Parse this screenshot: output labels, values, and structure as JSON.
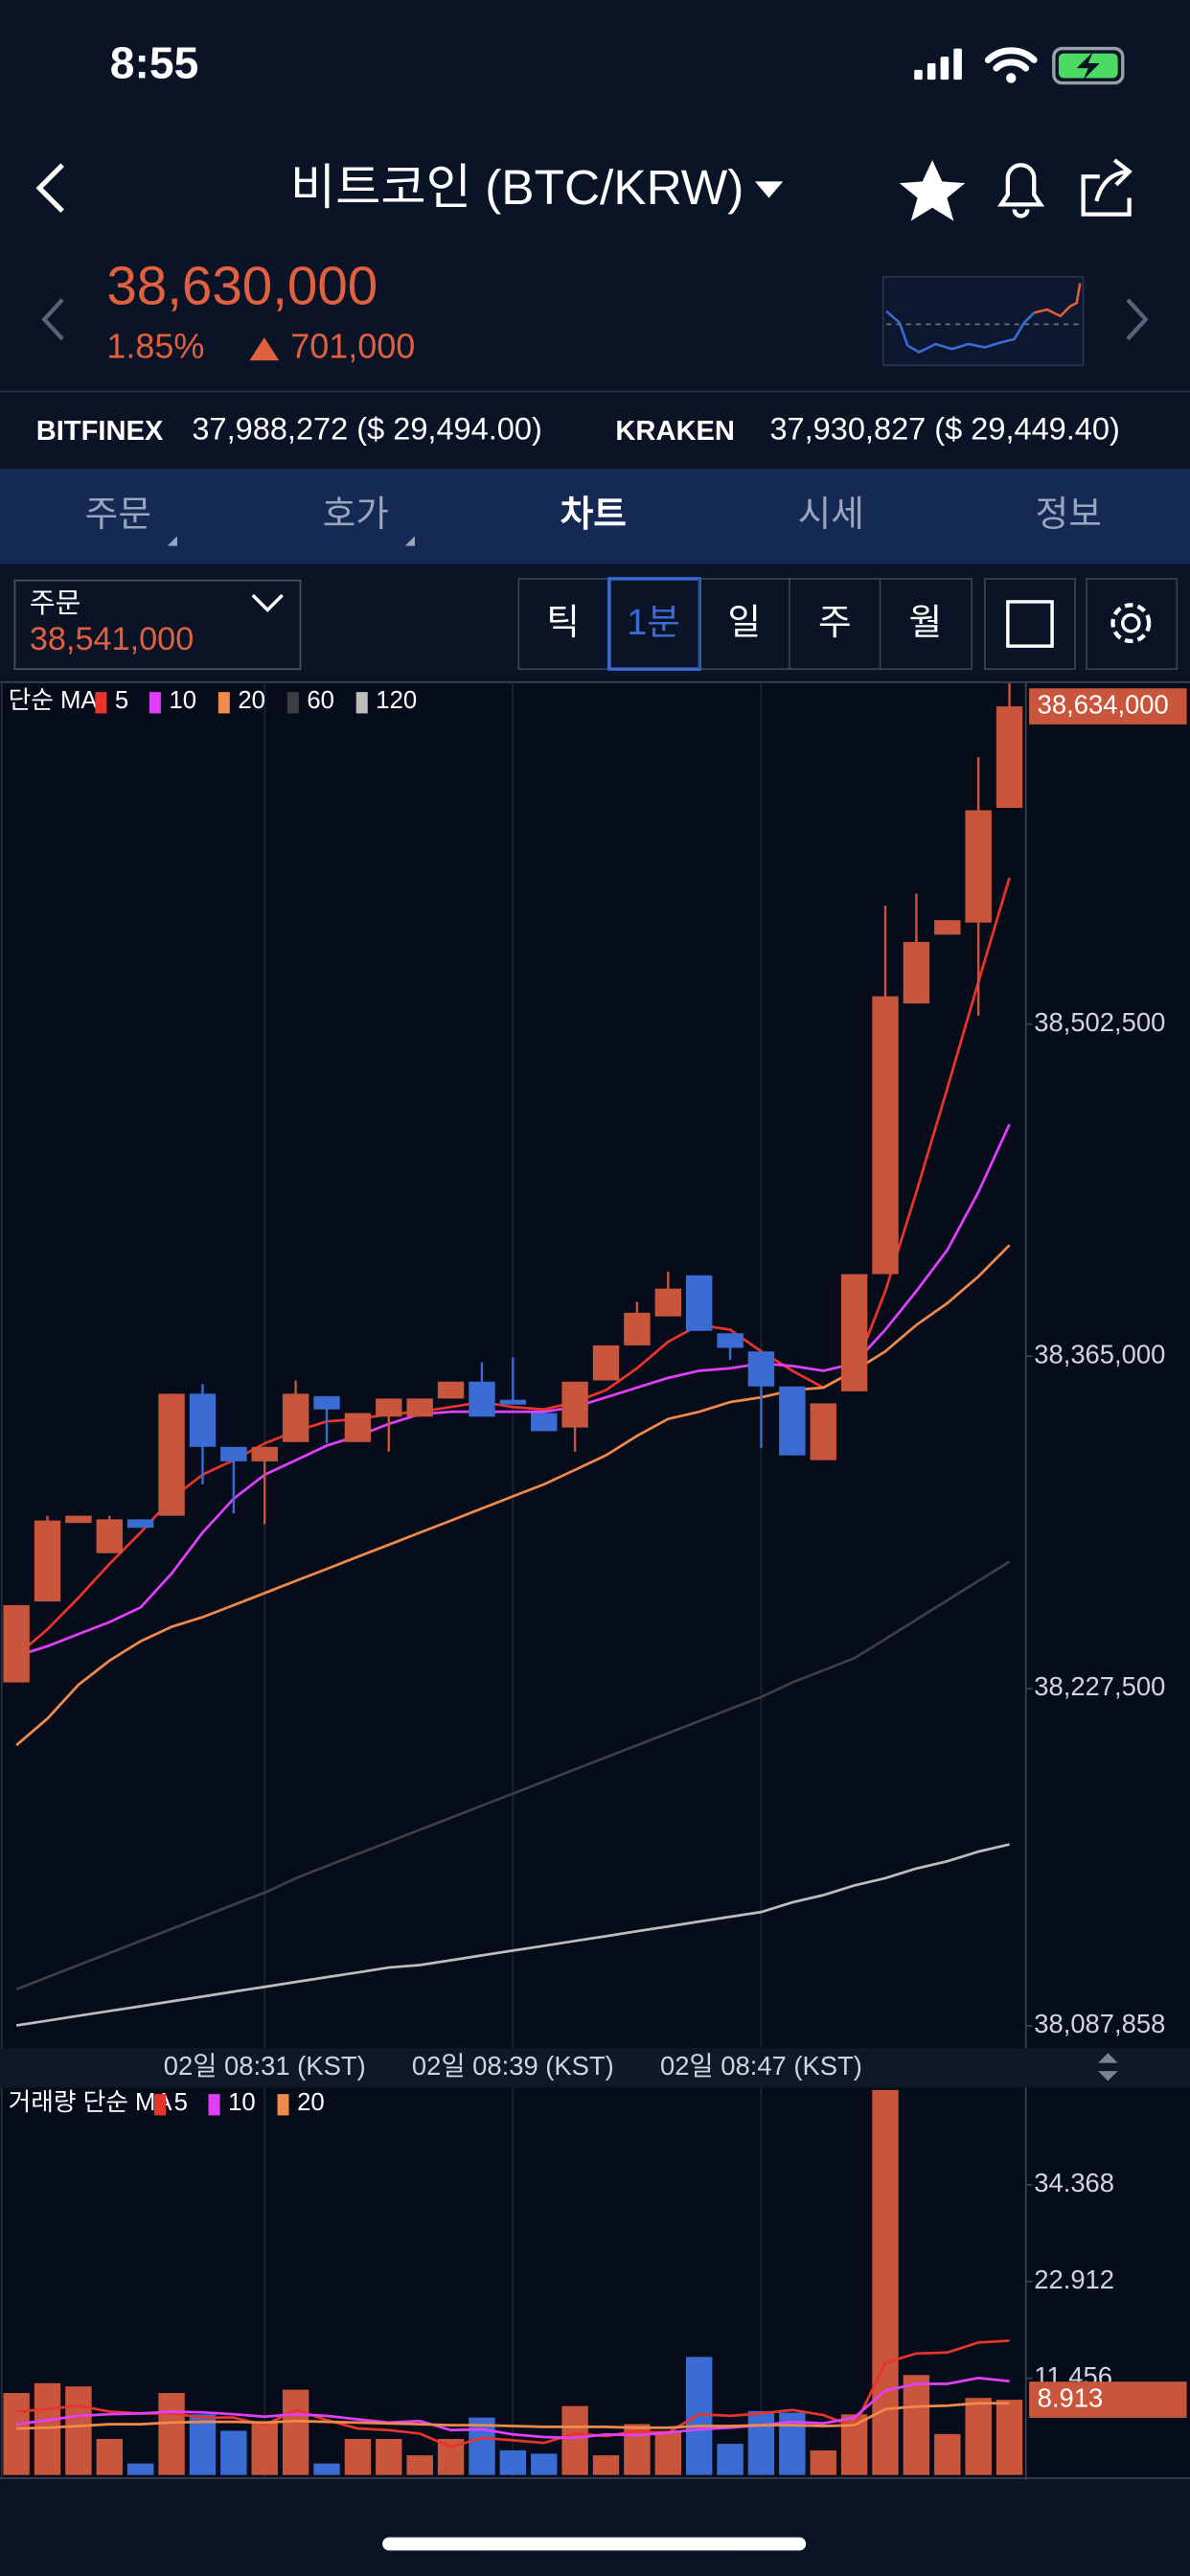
{
  "status_bar": {
    "time": "8:55"
  },
  "header": {
    "title": "비트코인 (BTC/KRW)"
  },
  "ticker": {
    "price": "38,630,000",
    "change_pct": "1.85%",
    "change": "701,000"
  },
  "exchanges": [
    {
      "name": "BITFINEX",
      "quote": "37,988,272 ($ 29,494.00)"
    },
    {
      "name": "KRAKEN",
      "quote": "37,930,827 ($ 29,449.40)"
    }
  ],
  "tabs": [
    "주문",
    "호가",
    "차트",
    "시세",
    "정보"
  ],
  "active_tab": 2,
  "order_box": {
    "label": "주문",
    "price": "38,541,000"
  },
  "periods": [
    "틱",
    "1분",
    "일",
    "주",
    "월"
  ],
  "active_period": 1,
  "chart_data": [
    {
      "type": "candlestick",
      "legend_title": "단순 MA",
      "categories": [
        null,
        null,
        null,
        null,
        null,
        null,
        null,
        null,
        "02일 08:31 (KST)",
        null,
        null,
        null,
        null,
        null,
        null,
        null,
        "02일 08:39 (KST)",
        null,
        null,
        null,
        null,
        null,
        null,
        null,
        "02일 08:47 (KST)",
        null,
        null,
        null,
        null,
        null,
        null,
        null,
        null
      ],
      "open": [
        38230000,
        38263500,
        38296000,
        38283500,
        38297500,
        38299000,
        38349500,
        38327500,
        38321500,
        38329500,
        38348500,
        38329500,
        38340000,
        38340000,
        38347500,
        38354500,
        38347000,
        38341500,
        38335500,
        38355000,
        38369500,
        38381500,
        38398500,
        38374500,
        38367000,
        38352500,
        38322000,
        38350500,
        38399000,
        38511000,
        38539500,
        38544500,
        38592000
      ],
      "high": [
        38262000,
        38299000,
        38299000,
        38299000,
        38297500,
        38349500,
        38353500,
        38327500,
        38327500,
        38355000,
        38348500,
        38341500,
        38347500,
        38347500,
        38354500,
        38362500,
        38364500,
        38341500,
        38354500,
        38369500,
        38387500,
        38400000,
        38398500,
        38374500,
        38367000,
        38352500,
        38345500,
        38399000,
        38551500,
        38556500,
        38545500,
        38613000,
        38643500
      ],
      "low": [
        38230000,
        38263500,
        38296000,
        38283500,
        38294000,
        38299000,
        38312000,
        38300000,
        38295500,
        38329500,
        38329000,
        38329500,
        38325500,
        38340000,
        38347500,
        38340000,
        38345000,
        38334000,
        38325500,
        38355000,
        38369500,
        38381500,
        38375500,
        38363500,
        38327000,
        38324000,
        38322000,
        38350500,
        38399000,
        38511000,
        38539500,
        38506000,
        38592000
      ],
      "close": [
        38262000,
        38297000,
        38299000,
        38297500,
        38294000,
        38349500,
        38327500,
        38321500,
        38327500,
        38349500,
        38343000,
        38341500,
        38347500,
        38347500,
        38354500,
        38340000,
        38345000,
        38334000,
        38354500,
        38369500,
        38383000,
        38393000,
        38375500,
        38368500,
        38352500,
        38324000,
        38345500,
        38399000,
        38514000,
        38536500,
        38545500,
        38591000,
        38634000
      ],
      "up_color": "#c9553d",
      "down_color": "#3a6cd4",
      "ylim": [
        38080000,
        38644000
      ],
      "yticks": [
        {
          "value": 38502500,
          "label": "38,502,500"
        },
        {
          "value": 38365000,
          "label": "38,365,000"
        },
        {
          "value": 38227500,
          "label": "38,227,500"
        },
        {
          "value": 38087858,
          "label": "38,087,858"
        }
      ],
      "last_price": {
        "value": 38634000,
        "label": "38,634,000"
      },
      "series": [
        {
          "name": "5",
          "color": "#e8352c",
          "values": [
            38241000,
            38252000,
            38265000,
            38279000,
            38292000,
            38306000,
            38316000,
            38322000,
            38329000,
            38334000,
            38338000,
            38339000,
            38341000,
            38342000,
            38344000,
            38346000,
            38344000,
            38343000,
            38346000,
            38351000,
            38360000,
            38371000,
            38378000,
            38376000,
            38367000,
            38359000,
            38352000,
            38359000,
            38392000,
            38433000,
            38476000,
            38520000,
            38563000
          ]
        },
        {
          "name": "10",
          "color": "#e040fb",
          "values": [
            38241000,
            38245000,
            38250000,
            38255000,
            38261000,
            38275000,
            38292000,
            38306000,
            38316000,
            38322000,
            38328000,
            38332000,
            38337000,
            38341000,
            38342000,
            38342000,
            38342000,
            38342000,
            38344000,
            38348000,
            38352000,
            38356000,
            38359000,
            38360000,
            38362000,
            38361000,
            38359000,
            38362000,
            38376000,
            38392000,
            38409000,
            38433000,
            38461000
          ]
        },
        {
          "name": "20",
          "color": "#f08a4b",
          "values": [
            38204000,
            38215000,
            38229000,
            38239000,
            38247000,
            38253000,
            38257000,
            38262000,
            38267000,
            38272000,
            38277000,
            38282000,
            38287000,
            38292000,
            38297000,
            38302000,
            38307000,
            38312000,
            38318000,
            38324000,
            38332000,
            38339000,
            38342000,
            38346000,
            38348000,
            38351000,
            38352000,
            38359000,
            38367000,
            38378000,
            38387000,
            38398000,
            38411000
          ]
        },
        {
          "name": "60",
          "color": "#3c4043",
          "values": [
            38103000,
            38108000,
            38113000,
            38118000,
            38123000,
            38128000,
            38133000,
            38138000,
            38143000,
            38149000,
            38154000,
            38159000,
            38164000,
            38169000,
            38174000,
            38179000,
            38184000,
            38189000,
            38194000,
            38199000,
            38204000,
            38209000,
            38214000,
            38219000,
            38224000,
            38230000,
            38235000,
            38240000,
            38248000,
            38256000,
            38264000,
            38272000,
            38280000
          ]
        },
        {
          "name": "120",
          "color": "#bdbdbd",
          "values": [
            38088000,
            38090000,
            38092000,
            38094000,
            38096000,
            38098000,
            38100000,
            38102000,
            38104000,
            38106000,
            38108000,
            38110000,
            38112000,
            38113000,
            38115000,
            38117000,
            38119000,
            38121000,
            38123000,
            38125000,
            38127000,
            38129000,
            38131000,
            38133000,
            38135000,
            38139000,
            38142000,
            38146000,
            38149000,
            38153000,
            38156000,
            38160000,
            38163000
          ]
        }
      ]
    },
    {
      "type": "bar",
      "legend_title": "거래량 단순 MA",
      "values": [
        9.71,
        10.87,
        10.49,
        4.27,
        1.36,
        9.71,
        7.18,
        5.24,
        6.21,
        10.1,
        1.36,
        4.27,
        4.27,
        2.33,
        4.27,
        6.8,
        2.91,
        2.52,
        8.16,
        2.33,
        6.02,
        5.24,
        13.98,
        3.69,
        7.57,
        7.38,
        2.91,
        7.18,
        45.6,
        11.84,
        4.85,
        9.13,
        8.913
      ],
      "ylim": [
        0,
        45.7
      ],
      "yticks": [
        34.368,
        22.912,
        11.456
      ],
      "series": [
        {
          "name": "5",
          "color": "#e8352c",
          "values": [
            7.5,
            7.8,
            8.2,
            7.5,
            7.3,
            7.3,
            6.8,
            6.8,
            5.9,
            7.7,
            6.5,
            5.5,
            5.3,
            4.9,
            3.3,
            4.4,
            4.1,
            3.8,
            4.9,
            4.6,
            5.2,
            5.0,
            7.2,
            7.0,
            7.3,
            7.7,
            7.1,
            5.7,
            13.3,
            14.4,
            14.5,
            15.7,
            15.9
          ]
        },
        {
          "name": "10",
          "color": "#e040fb",
          "values": [
            6.0,
            6.5,
            7.0,
            7.2,
            7.3,
            7.5,
            7.4,
            7.2,
            6.9,
            7.2,
            7.0,
            6.6,
            6.2,
            6.4,
            5.3,
            5.4,
            4.8,
            4.5,
            4.4,
            4.8,
            4.7,
            5.0,
            5.4,
            5.6,
            5.9,
            6.3,
            6.1,
            6.8,
            10.0,
            10.8,
            10.8,
            11.5,
            11.1
          ]
        },
        {
          "name": "20",
          "color": "#f08a4b",
          "values": [
            5.5,
            5.6,
            5.8,
            6.0,
            6.0,
            6.2,
            6.3,
            6.3,
            6.2,
            6.4,
            6.3,
            6.2,
            6.1,
            6.0,
            5.9,
            5.9,
            5.8,
            5.7,
            5.7,
            5.7,
            5.6,
            5.6,
            5.8,
            5.8,
            5.9,
            5.9,
            5.8,
            5.9,
            7.8,
            8.1,
            8.2,
            8.5,
            8.5
          ]
        }
      ]
    }
  ]
}
